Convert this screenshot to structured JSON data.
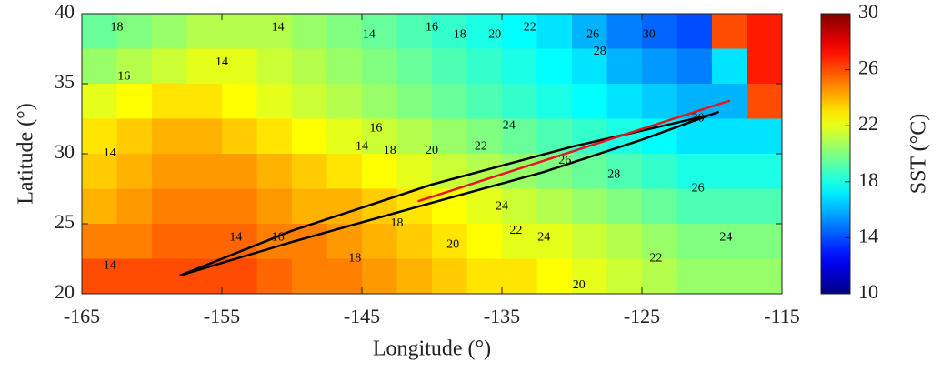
{
  "chart_data": {
    "type": "heatmap",
    "colormap": "jet",
    "x_label": "Longitude (°)",
    "y_label": "Latitude (°)",
    "colorbar_label": "SST (°C)",
    "xlim": [
      -165,
      -115
    ],
    "xticks": [
      -165,
      -155,
      -145,
      -135,
      -125,
      -115
    ],
    "ylim": [
      20,
      40
    ],
    "yticks": [
      20,
      25,
      30,
      35,
      40
    ],
    "clim": [
      10,
      30
    ],
    "cticks": [
      10,
      14,
      18,
      22,
      26,
      30
    ],
    "x": [
      -163.75,
      -161.25,
      -158.75,
      -156.25,
      -153.75,
      -151.25,
      -148.75,
      -146.25,
      -143.75,
      -141.25,
      -138.75,
      -136.25,
      -133.75,
      -131.25,
      -128.75,
      -126.25,
      -123.75,
      -121.25,
      -118.75,
      -116.25
    ],
    "y": [
      38.75,
      36.25,
      33.75,
      31.25,
      28.75,
      26.25,
      23.75,
      21.25
    ],
    "z": [
      [
        19.5,
        20,
        20.5,
        21,
        21,
        21,
        20.5,
        20,
        19.5,
        19,
        18.5,
        18,
        17.5,
        17,
        16,
        15,
        14.5,
        14,
        26,
        27
      ],
      [
        20.5,
        21,
        21.5,
        22,
        22,
        21.5,
        21,
        20.5,
        20,
        19.5,
        19,
        18.5,
        18,
        17.5,
        17,
        16,
        15.5,
        15,
        17,
        27
      ],
      [
        22,
        22.5,
        23,
        23,
        22.5,
        22,
        21.5,
        21,
        20.5,
        20,
        19.5,
        19,
        18.5,
        18,
        17.5,
        17,
        16.5,
        16,
        16,
        26
      ],
      [
        23,
        23.5,
        24,
        24,
        23.5,
        23,
        22.5,
        22,
        21.5,
        21,
        20.5,
        20,
        19.5,
        19,
        18.5,
        18,
        17.5,
        17,
        17,
        17
      ],
      [
        23.5,
        24,
        24.5,
        24.5,
        24.5,
        24,
        23.5,
        23,
        22.5,
        22,
        21.5,
        21,
        20.5,
        20,
        19.5,
        19,
        18.5,
        18,
        18,
        18
      ],
      [
        24,
        24.5,
        25,
        25,
        25,
        24.5,
        24,
        24,
        23.5,
        23,
        22.5,
        22,
        21.5,
        21,
        20.5,
        20,
        19.5,
        19,
        19,
        19
      ],
      [
        25,
        25,
        25.5,
        25.5,
        25.5,
        25,
        25,
        24.5,
        24,
        23.5,
        23,
        22.5,
        22,
        22,
        21.5,
        21,
        20.5,
        20,
        20,
        20
      ],
      [
        26,
        26,
        26,
        26,
        26,
        25.5,
        25,
        25,
        24.5,
        24,
        23.5,
        23,
        23,
        22.5,
        22,
        21.5,
        21,
        20.5,
        20.5,
        20.5
      ]
    ],
    "tracks": [
      {
        "color": "#000000",
        "x": [
          -158,
          -150,
          -140,
          -130,
          -120
        ],
        "y": [
          21.3,
          24.5,
          27.8,
          30.5,
          32.8
        ]
      },
      {
        "color": "#000000",
        "x": [
          -158,
          -150,
          -140,
          -132,
          -125,
          -119.5
        ],
        "y": [
          21.3,
          23.7,
          26.5,
          28.7,
          31,
          33
        ]
      },
      {
        "color": "#e8141e",
        "x": [
          -141,
          -118.7
        ],
        "y": [
          26.6,
          33.8
        ]
      }
    ],
    "contour_labels": [
      {
        "label": "18",
        "x": -162.5,
        "y": 39
      },
      {
        "label": "16",
        "x": -162,
        "y": 35.5
      },
      {
        "label": "14",
        "x": -155,
        "y": 36.5
      },
      {
        "label": "14",
        "x": -163,
        "y": 30
      },
      {
        "label": "14",
        "x": -163,
        "y": 22
      },
      {
        "label": "14",
        "x": -151,
        "y": 39
      },
      {
        "label": "14",
        "x": -144.5,
        "y": 38.5
      },
      {
        "label": "16",
        "x": -140,
        "y": 39
      },
      {
        "label": "18",
        "x": -138,
        "y": 38.5
      },
      {
        "label": "20",
        "x": -135.5,
        "y": 38.5
      },
      {
        "label": "22",
        "x": -133,
        "y": 39
      },
      {
        "label": "26",
        "x": -128.5,
        "y": 38.5
      },
      {
        "label": "28",
        "x": -128,
        "y": 37.3
      },
      {
        "label": "30",
        "x": -124.5,
        "y": 38.5
      },
      {
        "label": "14",
        "x": -145,
        "y": 30.5
      },
      {
        "label": "16",
        "x": -144,
        "y": 31.8
      },
      {
        "label": "18",
        "x": -143,
        "y": 30.2
      },
      {
        "label": "20",
        "x": -140,
        "y": 30.2
      },
      {
        "label": "22",
        "x": -136.5,
        "y": 30.5
      },
      {
        "label": "24",
        "x": -134.5,
        "y": 32
      },
      {
        "label": "26",
        "x": -130.5,
        "y": 29.5
      },
      {
        "label": "28",
        "x": -127,
        "y": 28.5
      },
      {
        "label": "30",
        "x": -121,
        "y": 32.5
      },
      {
        "label": "26",
        "x": -121,
        "y": 27.5
      },
      {
        "label": "24",
        "x": -119,
        "y": 24
      },
      {
        "label": "22",
        "x": -124,
        "y": 22.5
      },
      {
        "label": "20",
        "x": -129.5,
        "y": 20.6
      },
      {
        "label": "24",
        "x": -132,
        "y": 24
      },
      {
        "label": "22",
        "x": -134,
        "y": 24.5
      },
      {
        "label": "24",
        "x": -135,
        "y": 26.2
      },
      {
        "label": "20",
        "x": -138.5,
        "y": 23.5
      },
      {
        "label": "18",
        "x": -142.5,
        "y": 25
      },
      {
        "label": "18",
        "x": -145.5,
        "y": 22.5
      },
      {
        "label": "16",
        "x": -151,
        "y": 24
      },
      {
        "label": "14",
        "x": -154,
        "y": 24
      }
    ]
  }
}
